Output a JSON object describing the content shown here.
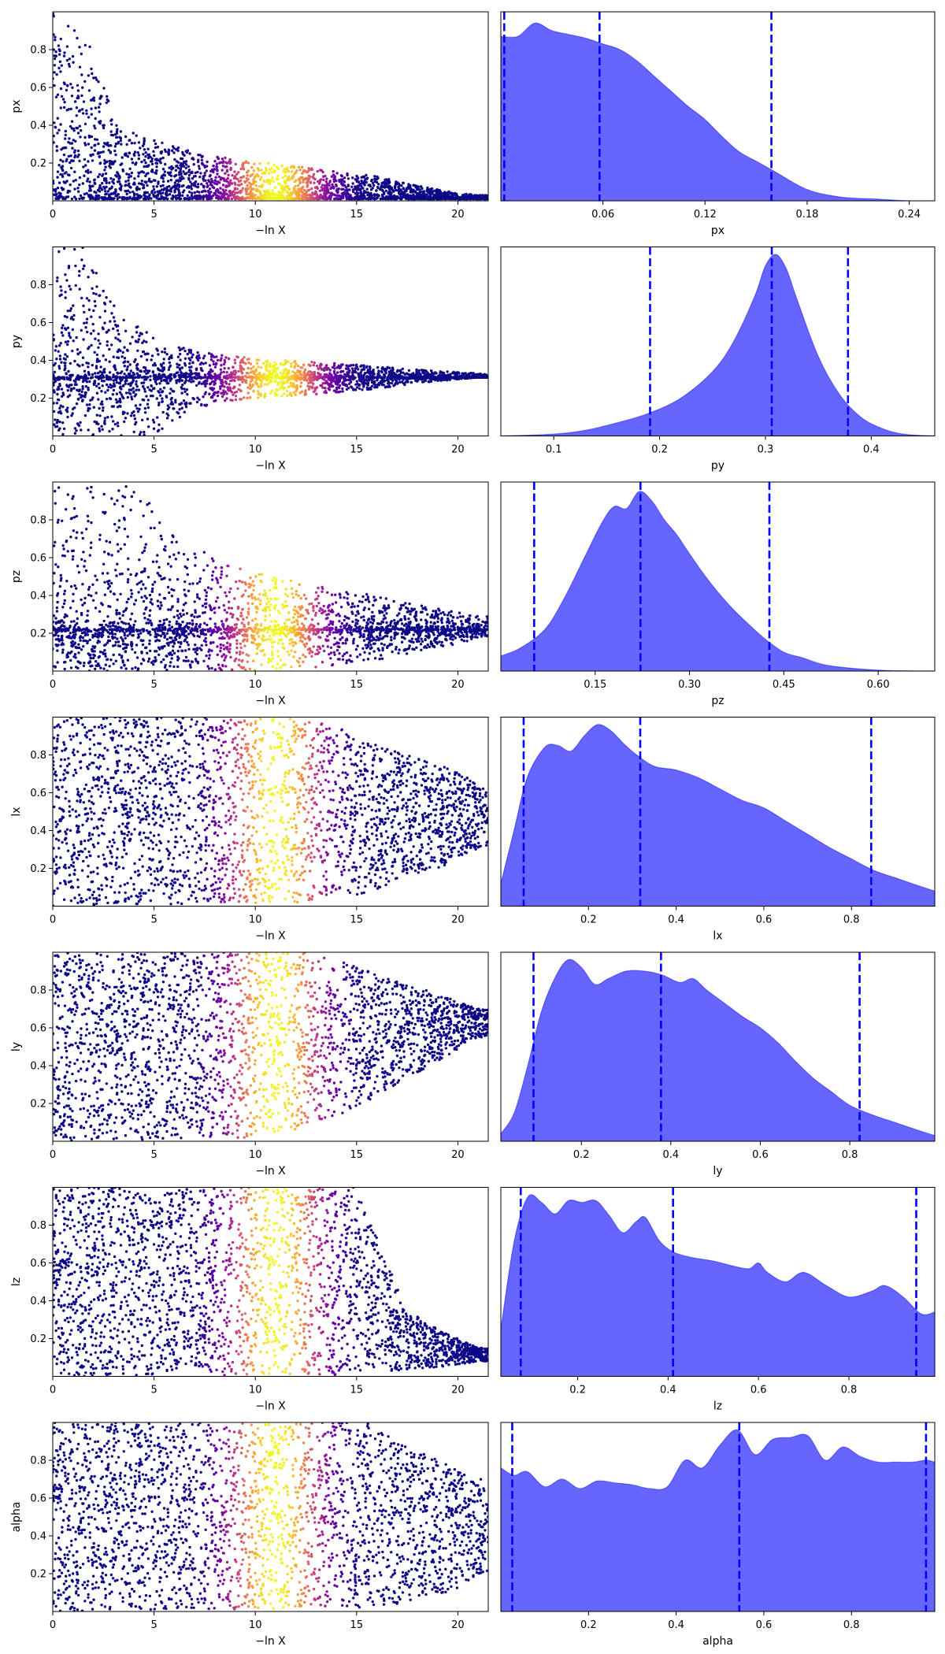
{
  "colors": {
    "kde_fill": "#6666ff",
    "kde_line": "#0000ff",
    "quantile_line": "#0000ff",
    "cmap": [
      "#0d0887",
      "#6a00a8",
      "#b12a90",
      "#e16462",
      "#fca636",
      "#f0f921"
    ]
  },
  "chart_data": [
    {
      "type": "scatter",
      "name": "px-trace",
      "xlabel": "−ln X",
      "ylabel": "px",
      "xlim": [
        0,
        21.5
      ],
      "ylim": [
        0.0,
        1.0
      ],
      "xticks": [
        0,
        5,
        10,
        15,
        20
      ],
      "xtick_labels": [
        "0",
        "5",
        "10",
        "15",
        "20"
      ],
      "yticks": [
        0.2,
        0.4,
        0.6,
        0.8
      ],
      "ytick_labels": [
        "0.2",
        "0.4",
        "0.6",
        "0.8"
      ],
      "envelope": [
        [
          0,
          1.0
        ],
        [
          1,
          1.0
        ],
        [
          2,
          0.78
        ],
        [
          3,
          0.45
        ],
        [
          4,
          0.36
        ],
        [
          5,
          0.32
        ],
        [
          7,
          0.26
        ],
        [
          10,
          0.21
        ],
        [
          13,
          0.17
        ],
        [
          16,
          0.13
        ],
        [
          18,
          0.08
        ],
        [
          20,
          0.04
        ],
        [
          21,
          0.03
        ]
      ],
      "color_peak_x": 11,
      "color_width": 1.6
    },
    {
      "type": "area",
      "name": "px-kde",
      "xlabel": "px",
      "xlim": [
        0.0,
        0.255
      ],
      "xticks": [
        0.06,
        0.12,
        0.18,
        0.24
      ],
      "xtick_labels": [
        "0.06",
        "0.12",
        "0.18",
        "0.24"
      ],
      "x": [
        0.0,
        0.01,
        0.02,
        0.03,
        0.04,
        0.05,
        0.06,
        0.07,
        0.08,
        0.09,
        0.1,
        0.11,
        0.12,
        0.13,
        0.14,
        0.15,
        0.16,
        0.18,
        0.2,
        0.22,
        0.24,
        0.255
      ],
      "y": [
        0.87,
        0.87,
        0.94,
        0.9,
        0.88,
        0.86,
        0.83,
        0.8,
        0.74,
        0.66,
        0.58,
        0.5,
        0.43,
        0.34,
        0.26,
        0.21,
        0.16,
        0.06,
        0.02,
        0.01,
        0.0,
        0.0
      ],
      "ymax": 1.0,
      "quantiles": [
        0.002,
        0.058,
        0.159
      ]
    },
    {
      "type": "scatter",
      "name": "py-trace",
      "xlabel": "−ln X",
      "ylabel": "py",
      "xlim": [
        0,
        21.5
      ],
      "ylim": [
        0.0,
        1.0
      ],
      "xticks": [
        0,
        5,
        10,
        15,
        20
      ],
      "xtick_labels": [
        "0",
        "5",
        "10",
        "15",
        "20"
      ],
      "yticks": [
        0.2,
        0.4,
        0.6,
        0.8
      ],
      "ytick_labels": [
        "0.2",
        "0.4",
        "0.6",
        "0.8"
      ],
      "center": 0.31,
      "envelope": [
        [
          0,
          1.0
        ],
        [
          1.5,
          1.0
        ],
        [
          3,
          0.7
        ],
        [
          5,
          0.52
        ],
        [
          7,
          0.45
        ],
        [
          10,
          0.41
        ],
        [
          13,
          0.39
        ],
        [
          16,
          0.37
        ],
        [
          18,
          0.35
        ],
        [
          20,
          0.34
        ],
        [
          21,
          0.33
        ]
      ],
      "lower_envelope": [
        [
          0,
          0.0
        ],
        [
          5,
          0.0
        ],
        [
          7,
          0.15
        ],
        [
          10,
          0.2
        ],
        [
          13,
          0.22
        ],
        [
          16,
          0.25
        ],
        [
          18,
          0.28
        ],
        [
          20,
          0.3
        ],
        [
          21,
          0.31
        ]
      ],
      "color_peak_x": 11,
      "color_width": 1.6
    },
    {
      "type": "area",
      "name": "py-kde",
      "xlabel": "py",
      "xlim": [
        0.05,
        0.46
      ],
      "xticks": [
        0.1,
        0.2,
        0.3,
        0.4
      ],
      "xtick_labels": [
        "0.1",
        "0.2",
        "0.3",
        "0.4"
      ],
      "x": [
        0.05,
        0.1,
        0.13,
        0.16,
        0.19,
        0.22,
        0.25,
        0.27,
        0.29,
        0.3,
        0.31,
        0.32,
        0.33,
        0.35,
        0.37,
        0.39,
        0.41,
        0.43,
        0.46
      ],
      "y": [
        0.0,
        0.01,
        0.03,
        0.07,
        0.12,
        0.2,
        0.34,
        0.5,
        0.74,
        0.9,
        0.96,
        0.88,
        0.72,
        0.42,
        0.22,
        0.1,
        0.04,
        0.01,
        0.0
      ],
      "ymax": 1.0,
      "quantiles": [
        0.191,
        0.306,
        0.378
      ]
    },
    {
      "type": "scatter",
      "name": "pz-trace",
      "xlabel": "−ln X",
      "ylabel": "pz",
      "xlim": [
        0,
        21.5
      ],
      "ylim": [
        0.0,
        1.0
      ],
      "xticks": [
        0,
        5,
        10,
        15,
        20
      ],
      "xtick_labels": [
        "0",
        "5",
        "10",
        "15",
        "20"
      ],
      "yticks": [
        0.2,
        0.4,
        0.6,
        0.8
      ],
      "ytick_labels": [
        "0.2",
        "0.4",
        "0.6",
        "0.8"
      ],
      "center": 0.22,
      "envelope": [
        [
          0,
          1.0
        ],
        [
          4,
          1.0
        ],
        [
          6,
          0.72
        ],
        [
          8,
          0.6
        ],
        [
          10,
          0.52
        ],
        [
          13,
          0.45
        ],
        [
          16,
          0.4
        ],
        [
          18,
          0.35
        ],
        [
          20,
          0.31
        ],
        [
          21,
          0.29
        ]
      ],
      "lower_envelope": [
        [
          0,
          0.0
        ],
        [
          10,
          0.0
        ],
        [
          13,
          0.02
        ],
        [
          16,
          0.06
        ],
        [
          18,
          0.1
        ],
        [
          20,
          0.14
        ],
        [
          21,
          0.18
        ]
      ],
      "color_peak_x": 11,
      "color_width": 1.6
    },
    {
      "type": "area",
      "name": "pz-kde",
      "xlabel": "pz",
      "xlim": [
        0.0,
        0.69
      ],
      "xticks": [
        0.15,
        0.3,
        0.45,
        0.6
      ],
      "xtick_labels": [
        "0.15",
        "0.30",
        "0.45",
        "0.60"
      ],
      "x": [
        0.0,
        0.03,
        0.07,
        0.1,
        0.13,
        0.16,
        0.18,
        0.2,
        0.22,
        0.24,
        0.26,
        0.28,
        0.3,
        0.33,
        0.36,
        0.39,
        0.42,
        0.45,
        0.48,
        0.52,
        0.6,
        0.69
      ],
      "y": [
        0.08,
        0.12,
        0.22,
        0.38,
        0.58,
        0.78,
        0.87,
        0.86,
        0.95,
        0.9,
        0.8,
        0.72,
        0.62,
        0.48,
        0.36,
        0.26,
        0.17,
        0.1,
        0.07,
        0.03,
        0.005,
        0.0
      ],
      "ymax": 1.0,
      "quantiles": [
        0.053,
        0.222,
        0.427
      ]
    },
    {
      "type": "scatter",
      "name": "lx-trace",
      "xlabel": "−ln X",
      "ylabel": "lx",
      "xlim": [
        0,
        21.5
      ],
      "ylim": [
        0.0,
        1.0
      ],
      "xticks": [
        0,
        5,
        10,
        15,
        20
      ],
      "xtick_labels": [
        "0",
        "5",
        "10",
        "15",
        "20"
      ],
      "yticks": [
        0.2,
        0.4,
        0.6,
        0.8
      ],
      "ytick_labels": [
        "0.2",
        "0.4",
        "0.6",
        "0.8"
      ],
      "envelope": [
        [
          0,
          1.0
        ],
        [
          12,
          1.0
        ],
        [
          14,
          0.95
        ],
        [
          16,
          0.85
        ],
        [
          18,
          0.78
        ],
        [
          20,
          0.72
        ],
        [
          21,
          0.64
        ]
      ],
      "lower_envelope": [
        [
          0,
          0.0
        ],
        [
          12,
          0.02
        ],
        [
          15,
          0.06
        ],
        [
          17,
          0.12
        ],
        [
          19,
          0.2
        ],
        [
          21,
          0.3
        ]
      ],
      "color_peak_x": 11,
      "color_width": 1.6
    },
    {
      "type": "area",
      "name": "lx-kde",
      "xlabel": "lx",
      "xlim": [
        0.0,
        0.99
      ],
      "xticks": [
        0.2,
        0.4,
        0.6,
        0.8
      ],
      "xtick_labels": [
        "0.2",
        "0.4",
        "0.6",
        "0.8"
      ],
      "x": [
        0.0,
        0.03,
        0.06,
        0.1,
        0.13,
        0.16,
        0.19,
        0.22,
        0.25,
        0.28,
        0.31,
        0.35,
        0.4,
        0.45,
        0.5,
        0.55,
        0.6,
        0.65,
        0.7,
        0.75,
        0.8,
        0.85,
        0.9,
        0.95,
        0.99
      ],
      "y": [
        0.12,
        0.4,
        0.68,
        0.84,
        0.85,
        0.82,
        0.9,
        0.96,
        0.93,
        0.86,
        0.8,
        0.74,
        0.72,
        0.68,
        0.62,
        0.56,
        0.52,
        0.45,
        0.38,
        0.31,
        0.25,
        0.19,
        0.15,
        0.11,
        0.08
      ],
      "ymax": 1.0,
      "quantiles": [
        0.052,
        0.318,
        0.845
      ]
    },
    {
      "type": "scatter",
      "name": "ly-trace",
      "xlabel": "−ln X",
      "ylabel": "ly",
      "xlim": [
        0,
        21.5
      ],
      "ylim": [
        0.0,
        1.0
      ],
      "xticks": [
        0,
        5,
        10,
        15,
        20
      ],
      "xtick_labels": [
        "0",
        "5",
        "10",
        "15",
        "20"
      ],
      "yticks": [
        0.2,
        0.4,
        0.6,
        0.8
      ],
      "ytick_labels": [
        "0.2",
        "0.4",
        "0.6",
        "0.8"
      ],
      "envelope": [
        [
          0,
          1.0
        ],
        [
          13,
          1.0
        ],
        [
          15,
          0.92
        ],
        [
          17,
          0.85
        ],
        [
          19,
          0.78
        ],
        [
          21,
          0.7
        ]
      ],
      "lower_envelope": [
        [
          0,
          0.0
        ],
        [
          10,
          0.02
        ],
        [
          13,
          0.08
        ],
        [
          15,
          0.18
        ],
        [
          17,
          0.3
        ],
        [
          19,
          0.42
        ],
        [
          21,
          0.55
        ]
      ],
      "color_peak_x": 11,
      "color_width": 1.6
    },
    {
      "type": "area",
      "name": "ly-kde",
      "xlabel": "ly",
      "xlim": [
        0.02,
        0.99
      ],
      "xticks": [
        0.2,
        0.4,
        0.6,
        0.8
      ],
      "xtick_labels": [
        "0.2",
        "0.4",
        "0.6",
        "0.8"
      ],
      "x": [
        0.02,
        0.05,
        0.08,
        0.11,
        0.14,
        0.17,
        0.2,
        0.23,
        0.26,
        0.3,
        0.34,
        0.38,
        0.42,
        0.45,
        0.48,
        0.52,
        0.56,
        0.6,
        0.64,
        0.68,
        0.72,
        0.76,
        0.8,
        0.85,
        0.9,
        0.95,
        0.99
      ],
      "y": [
        0.04,
        0.15,
        0.4,
        0.68,
        0.86,
        0.96,
        0.92,
        0.83,
        0.86,
        0.9,
        0.9,
        0.88,
        0.84,
        0.86,
        0.8,
        0.73,
        0.66,
        0.6,
        0.52,
        0.42,
        0.33,
        0.26,
        0.19,
        0.14,
        0.1,
        0.06,
        0.03
      ],
      "ymax": 1.0,
      "quantiles": [
        0.093,
        0.378,
        0.822
      ]
    },
    {
      "type": "scatter",
      "name": "lz-trace",
      "xlabel": "−ln X",
      "ylabel": "lz",
      "xlim": [
        0,
        21.5
      ],
      "ylim": [
        0.0,
        1.0
      ],
      "xticks": [
        0,
        5,
        10,
        15,
        20
      ],
      "xtick_labels": [
        "0",
        "5",
        "10",
        "15",
        "20"
      ],
      "yticks": [
        0.2,
        0.4,
        0.6,
        0.8
      ],
      "ytick_labels": [
        "0.2",
        "0.4",
        "0.6",
        "0.8"
      ],
      "envelope": [
        [
          0,
          1.0
        ],
        [
          15,
          1.0
        ],
        [
          16.5,
          0.6
        ],
        [
          17.5,
          0.35
        ],
        [
          19,
          0.25
        ],
        [
          21,
          0.15
        ]
      ],
      "lower_envelope": [
        [
          0,
          0.0
        ],
        [
          16,
          0.01
        ],
        [
          18,
          0.04
        ],
        [
          20,
          0.06
        ],
        [
          21,
          0.08
        ]
      ],
      "color_peak_x": 11,
      "color_width": 1.6
    },
    {
      "type": "area",
      "name": "lz-kde",
      "xlabel": "lz",
      "xlim": [
        0.03,
        0.99
      ],
      "xticks": [
        0.2,
        0.4,
        0.6,
        0.8
      ],
      "xtick_labels": [
        "0.2",
        "0.4",
        "0.6",
        "0.8"
      ],
      "x": [
        0.03,
        0.06,
        0.09,
        0.12,
        0.15,
        0.18,
        0.21,
        0.24,
        0.27,
        0.3,
        0.33,
        0.35,
        0.38,
        0.41,
        0.45,
        0.5,
        0.55,
        0.58,
        0.6,
        0.62,
        0.66,
        0.7,
        0.75,
        0.8,
        0.85,
        0.88,
        0.92,
        0.96,
        0.99
      ],
      "y": [
        0.25,
        0.72,
        0.95,
        0.92,
        0.86,
        0.93,
        0.92,
        0.93,
        0.85,
        0.76,
        0.82,
        0.84,
        0.72,
        0.66,
        0.63,
        0.61,
        0.58,
        0.57,
        0.6,
        0.55,
        0.5,
        0.55,
        0.48,
        0.42,
        0.45,
        0.48,
        0.42,
        0.33,
        0.34
      ],
      "ymax": 1.0,
      "quantiles": [
        0.074,
        0.411,
        0.949
      ]
    },
    {
      "type": "scatter",
      "name": "alpha-trace",
      "xlabel": "−ln X",
      "ylabel": "alpha",
      "xlim": [
        0,
        21.5
      ],
      "ylim": [
        0.0,
        1.0
      ],
      "xticks": [
        0,
        5,
        10,
        15,
        20
      ],
      "xtick_labels": [
        "0",
        "5",
        "10",
        "15",
        "20"
      ],
      "yticks": [
        0.2,
        0.4,
        0.6,
        0.8
      ],
      "ytick_labels": [
        "0.2",
        "0.4",
        "0.6",
        "0.8"
      ],
      "envelope": [
        [
          0,
          1.0
        ],
        [
          16,
          1.0
        ],
        [
          17,
          0.9
        ],
        [
          19,
          0.8
        ],
        [
          21,
          0.7
        ]
      ],
      "lower_envelope": [
        [
          0,
          0.0
        ],
        [
          16,
          0.02
        ],
        [
          18,
          0.06
        ],
        [
          20,
          0.12
        ],
        [
          21,
          0.2
        ]
      ],
      "color_peak_x": 11,
      "color_width": 1.6
    },
    {
      "type": "area",
      "name": "alpha-kde",
      "xlabel": "alpha",
      "xlim": [
        0.0,
        0.99
      ],
      "xticks": [
        0.2,
        0.4,
        0.6,
        0.8
      ],
      "xtick_labels": [
        "0.2",
        "0.4",
        "0.6",
        "0.8"
      ],
      "x": [
        0.0,
        0.03,
        0.06,
        0.1,
        0.14,
        0.18,
        0.22,
        0.26,
        0.3,
        0.34,
        0.38,
        0.42,
        0.46,
        0.5,
        0.54,
        0.58,
        0.62,
        0.66,
        0.7,
        0.74,
        0.78,
        0.82,
        0.86,
        0.9,
        0.94,
        0.97,
        0.99
      ],
      "y": [
        0.76,
        0.72,
        0.74,
        0.66,
        0.7,
        0.65,
        0.69,
        0.68,
        0.67,
        0.65,
        0.66,
        0.8,
        0.76,
        0.88,
        0.96,
        0.83,
        0.91,
        0.92,
        0.93,
        0.8,
        0.87,
        0.82,
        0.79,
        0.79,
        0.79,
        0.8,
        0.79
      ],
      "ymax": 1.0,
      "quantiles": [
        0.026,
        0.544,
        0.97
      ]
    }
  ]
}
